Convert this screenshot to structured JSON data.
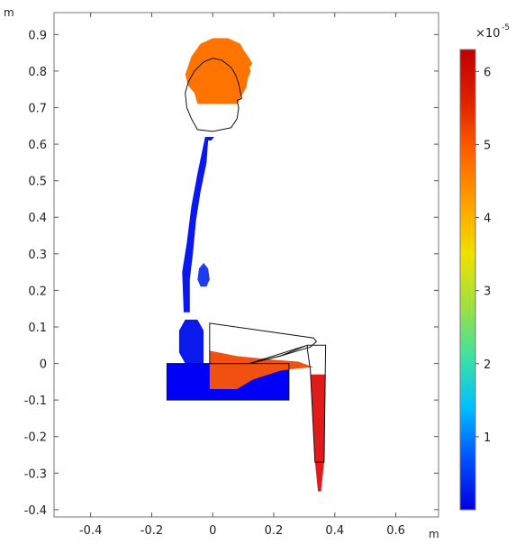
{
  "chart_data": {
    "type": "heatmap",
    "title": "",
    "xlabel": "m",
    "ylabel": "m",
    "xlim": [
      -0.52,
      0.74
    ],
    "ylim": [
      -0.42,
      0.96
    ],
    "x_ticks": [
      -0.4,
      -0.2,
      0,
      0.2,
      0.4,
      0.6
    ],
    "x_tick_labels": [
      "-0.4",
      "-0.2",
      "0",
      "0.2",
      "0.4",
      "0.6"
    ],
    "y_ticks": [
      0.9,
      0.8,
      0.7,
      0.6,
      0.5,
      0.4,
      0.3,
      0.2,
      0.1,
      0,
      -0.1,
      -0.2,
      -0.3,
      -0.4
    ],
    "y_tick_labels": [
      "0.9",
      "0.8",
      "0.7",
      "0.6",
      "0.5",
      "0.4",
      "0.3",
      "0.2",
      "0.1",
      "0",
      "-0.1",
      "-0.2",
      "-0.3",
      "-0.4"
    ],
    "grid": false,
    "legend": "none",
    "colorbar": {
      "placement": "right",
      "min": 0,
      "max": 6.3,
      "ticks": [
        1,
        2,
        3,
        4,
        5,
        6
      ],
      "tick_labels": [
        "1",
        "2",
        "3",
        "4",
        "5",
        "6"
      ],
      "multiplier_base": "×10",
      "multiplier_exponent": "-5",
      "colormap": [
        "#0000e0",
        "#0050ff",
        "#00c0ff",
        "#40e0a0",
        "#a0e040",
        "#f0e000",
        "#ffa000",
        "#ff6000",
        "#e02000",
        "#c00000"
      ]
    },
    "regions": [
      {
        "name": "head",
        "value": 5.3,
        "color": "#ff7400",
        "points": [
          [
            -0.09,
            0.79
          ],
          [
            -0.07,
            0.84
          ],
          [
            -0.04,
            0.875
          ],
          [
            0.0,
            0.89
          ],
          [
            0.05,
            0.89
          ],
          [
            0.09,
            0.875
          ],
          [
            0.1,
            0.86
          ],
          [
            0.12,
            0.835
          ],
          [
            0.13,
            0.82
          ],
          [
            0.12,
            0.81
          ],
          [
            0.125,
            0.8
          ],
          [
            0.115,
            0.78
          ],
          [
            0.11,
            0.755
          ],
          [
            0.1,
            0.74
          ],
          [
            0.09,
            0.725
          ],
          [
            0.08,
            0.71
          ],
          [
            -0.05,
            0.71
          ],
          [
            -0.06,
            0.74
          ],
          [
            -0.08,
            0.76
          ]
        ]
      },
      {
        "name": "neck-spine",
        "value": 0.3,
        "color": "#0a18ee",
        "points": [
          [
            -0.005,
            0.61
          ],
          [
            -0.015,
            0.61
          ],
          [
            -0.02,
            0.55
          ],
          [
            -0.04,
            0.47
          ],
          [
            -0.055,
            0.39
          ],
          [
            -0.065,
            0.3
          ],
          [
            -0.075,
            0.23
          ],
          [
            -0.075,
            0.14
          ],
          [
            -0.095,
            0.14
          ],
          [
            -0.1,
            0.25
          ],
          [
            -0.085,
            0.33
          ],
          [
            -0.07,
            0.43
          ],
          [
            -0.05,
            0.52
          ],
          [
            -0.035,
            0.58
          ],
          [
            -0.025,
            0.62
          ],
          [
            0.005,
            0.62
          ]
        ]
      },
      {
        "name": "heart",
        "value": 0.6,
        "color": "#1e3cf0",
        "points": [
          [
            -0.04,
            0.21
          ],
          [
            -0.02,
            0.21
          ],
          [
            -0.01,
            0.23
          ],
          [
            -0.015,
            0.26
          ],
          [
            -0.03,
            0.275
          ],
          [
            -0.045,
            0.26
          ],
          [
            -0.05,
            0.23
          ]
        ]
      },
      {
        "name": "pelvis",
        "value": 0.2,
        "color": "#0a1aee",
        "points": [
          [
            -0.09,
            0.0
          ],
          [
            -0.11,
            0.03
          ],
          [
            -0.11,
            0.09
          ],
          [
            -0.09,
            0.12
          ],
          [
            -0.05,
            0.12
          ],
          [
            -0.03,
            0.09
          ],
          [
            -0.03,
            0.0
          ]
        ]
      },
      {
        "name": "seat",
        "value": 0.1,
        "color": "#0000f8",
        "points": [
          [
            -0.15,
            0.0
          ],
          [
            0.25,
            0.0
          ],
          [
            0.25,
            -0.1
          ],
          [
            -0.15,
            -0.1
          ]
        ]
      },
      {
        "name": "thigh",
        "value": 5.6,
        "color": "#f05010",
        "points": [
          [
            -0.01,
            0.035
          ],
          [
            0.08,
            0.02
          ],
          [
            0.2,
            0.01
          ],
          [
            0.28,
            0.005
          ],
          [
            0.33,
            -0.01
          ],
          [
            0.26,
            -0.015
          ],
          [
            0.22,
            -0.02
          ],
          [
            0.13,
            -0.045
          ],
          [
            0.08,
            -0.07
          ],
          [
            -0.01,
            -0.07
          ]
        ]
      },
      {
        "name": "lower-leg",
        "value": 6.3,
        "color": "#e11a1a",
        "points": [
          [
            0.32,
            -0.03
          ],
          [
            0.37,
            -0.03
          ],
          [
            0.365,
            -0.27
          ],
          [
            0.355,
            -0.35
          ],
          [
            0.345,
            -0.35
          ],
          [
            0.335,
            -0.27
          ]
        ]
      }
    ],
    "outlines": [
      {
        "name": "head-outline",
        "points": [
          [
            -0.09,
            0.74
          ],
          [
            -0.08,
            0.77
          ],
          [
            -0.06,
            0.8
          ],
          [
            -0.03,
            0.825
          ],
          [
            0.0,
            0.835
          ],
          [
            0.03,
            0.83
          ],
          [
            0.06,
            0.81
          ],
          [
            0.075,
            0.79
          ],
          [
            0.085,
            0.765
          ],
          [
            0.09,
            0.745
          ],
          [
            0.095,
            0.725
          ],
          [
            0.08,
            0.72
          ],
          [
            0.085,
            0.7
          ],
          [
            0.08,
            0.67
          ],
          [
            0.06,
            0.645
          ],
          [
            0.0,
            0.635
          ],
          [
            -0.05,
            0.64
          ],
          [
            -0.07,
            0.67
          ],
          [
            -0.085,
            0.7
          ]
        ]
      },
      {
        "name": "thigh-outline",
        "points": [
          [
            -0.01,
            0.11
          ],
          [
            0.33,
            0.07
          ],
          [
            0.34,
            0.06
          ],
          [
            0.32,
            0.045
          ],
          [
            0.22,
            0.02
          ],
          [
            0.12,
            0.0
          ],
          [
            -0.01,
            0.0
          ]
        ]
      },
      {
        "name": "seat-top-outline",
        "points": [
          [
            -0.15,
            0.0
          ],
          [
            0.25,
            0.0
          ],
          [
            0.25,
            -0.1
          ],
          [
            -0.15,
            -0.1
          ]
        ]
      },
      {
        "name": "knee-leg-outline",
        "points": [
          [
            0.31,
            0.05
          ],
          [
            0.37,
            0.05
          ],
          [
            0.365,
            -0.27
          ],
          [
            0.335,
            -0.27
          ],
          [
            0.32,
            -0.02
          ],
          [
            0.31,
            0.04
          ]
        ]
      },
      {
        "name": "thigh-lower-outline",
        "points": [
          [
            0.12,
            0.0
          ],
          [
            0.22,
            0.02
          ],
          [
            0.31,
            0.05
          ]
        ]
      }
    ]
  }
}
